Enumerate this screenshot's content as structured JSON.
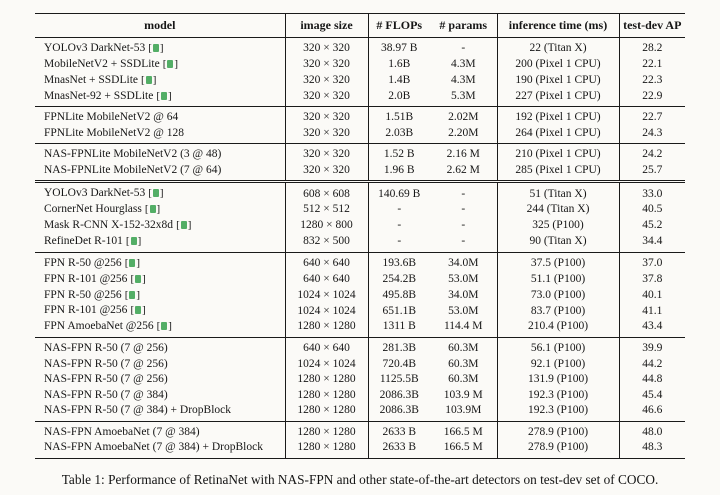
{
  "colors": {
    "citation_link": "#35a04c",
    "rule": "#1a1a1a",
    "page_background": "#fbfaf7"
  },
  "table": {
    "columns": [
      "model",
      "image size",
      "# FLOPs",
      "# params",
      "inference time (ms)",
      "test-dev AP"
    ],
    "groups": [
      {
        "separator": "single",
        "rows": [
          {
            "model": "YOLOv3 DarkNet-53",
            "cite": true,
            "size": "320 × 320",
            "flops": "38.97 B",
            "params": "-",
            "time": "22 (Titan X)",
            "ap": "28.2"
          },
          {
            "model": "MobileNetV2 + SSDLite",
            "cite": true,
            "size": "320 × 320",
            "flops": "1.6B",
            "params": "4.3M",
            "time": "200 (Pixel 1 CPU)",
            "ap": "22.1"
          },
          {
            "model": "MnasNet + SSDLite",
            "cite": true,
            "size": "320 × 320",
            "flops": "1.4B",
            "params": "4.3M",
            "time": "190 (Pixel 1 CPU)",
            "ap": "22.3"
          },
          {
            "model": "MnasNet-92 + SSDLite",
            "cite": true,
            "size": "320 × 320",
            "flops": "2.0B",
            "params": "5.3M",
            "time": "227 (Pixel 1 CPU)",
            "ap": "22.9"
          }
        ]
      },
      {
        "separator": "single",
        "rows": [
          {
            "model": "FPNLite MobileNetV2 @ 64",
            "cite": false,
            "size": "320 × 320",
            "flops": "1.51B",
            "params": "2.02M",
            "time": "192 (Pixel 1 CPU)",
            "ap": "22.7"
          },
          {
            "model": "FPNLite MobileNetV2 @ 128",
            "cite": false,
            "size": "320 × 320",
            "flops": "2.03B",
            "params": "2.20M",
            "time": "264 (Pixel 1 CPU)",
            "ap": "24.3"
          }
        ]
      },
      {
        "separator": "single",
        "rows": [
          {
            "model": "NAS-FPNLite MobileNetV2 (3 @ 48)",
            "cite": false,
            "size": "320 × 320",
            "flops": "1.52 B",
            "params": "2.16 M",
            "time": "210 (Pixel 1 CPU)",
            "ap": "24.2"
          },
          {
            "model": "NAS-FPNLite MobileNetV2 (7 @ 64)",
            "cite": false,
            "size": "320 × 320",
            "flops": "1.96 B",
            "params": "2.62 M",
            "time": "285 (Pixel 1 CPU)",
            "ap": "25.7"
          }
        ]
      },
      {
        "separator": "double",
        "rows": [
          {
            "model": "YOLOv3 DarkNet-53",
            "cite": true,
            "size": "608 × 608",
            "flops": "140.69 B",
            "params": "-",
            "time": "51 (Titan X)",
            "ap": "33.0"
          },
          {
            "model": "CornerNet Hourglass",
            "cite": true,
            "size": "512 × 512",
            "flops": "-",
            "params": "-",
            "time": "244 (Titan X)",
            "ap": "40.5"
          },
          {
            "model": "Mask R-CNN X-152-32x8d",
            "cite": true,
            "size": "1280 × 800",
            "flops": "-",
            "params": "-",
            "time": "325 (P100)",
            "ap": "45.2"
          },
          {
            "model": "RefineDet R-101",
            "cite": true,
            "size": "832 × 500",
            "flops": "-",
            "params": "-",
            "time": "90 (Titan X)",
            "ap": "34.4"
          }
        ]
      },
      {
        "separator": "single",
        "rows": [
          {
            "model": "FPN R-50 @256",
            "cite": true,
            "size": "640 × 640",
            "flops": "193.6B",
            "params": "34.0M",
            "time": "37.5 (P100)",
            "ap": "37.0"
          },
          {
            "model": "FPN R-101 @256",
            "cite": true,
            "size": "640 × 640",
            "flops": "254.2B",
            "params": "53.0M",
            "time": "51.1 (P100)",
            "ap": "37.8"
          },
          {
            "model": "FPN R-50 @256",
            "cite": true,
            "size": "1024 × 1024",
            "flops": "495.8B",
            "params": "34.0M",
            "time": "73.0 (P100)",
            "ap": "40.1"
          },
          {
            "model": "FPN R-101 @256",
            "cite": true,
            "size": "1024 × 1024",
            "flops": "651.1B",
            "params": "53.0M",
            "time": "83.7 (P100)",
            "ap": "41.1"
          },
          {
            "model": "FPN AmoebaNet @256",
            "cite": true,
            "size": "1280 × 1280",
            "flops": "1311 B",
            "params": "114.4 M",
            "time": "210.4 (P100)",
            "ap": "43.4"
          }
        ]
      },
      {
        "separator": "single",
        "rows": [
          {
            "model": "NAS-FPN R-50 (7 @ 256)",
            "cite": false,
            "size": "640 × 640",
            "flops": "281.3B",
            "params": "60.3M",
            "time": "56.1 (P100)",
            "ap": "39.9"
          },
          {
            "model": "NAS-FPN R-50 (7 @ 256)",
            "cite": false,
            "size": "1024 × 1024",
            "flops": "720.4B",
            "params": "60.3M",
            "time": "92.1 (P100)",
            "ap": "44.2"
          },
          {
            "model": "NAS-FPN R-50 (7 @ 256)",
            "cite": false,
            "size": "1280 × 1280",
            "flops": "1125.5B",
            "params": "60.3M",
            "time": "131.9 (P100)",
            "ap": "44.8"
          },
          {
            "model": "NAS-FPN R-50 (7 @ 384)",
            "cite": false,
            "size": "1280 × 1280",
            "flops": "2086.3B",
            "params": "103.9 M",
            "time": "192.3 (P100)",
            "ap": "45.4"
          },
          {
            "model": "NAS-FPN R-50 (7 @ 384) + DropBlock",
            "cite": false,
            "size": "1280 × 1280",
            "flops": "2086.3B",
            "params": "103.9M",
            "time": "192.3 (P100)",
            "ap": "46.6"
          }
        ]
      },
      {
        "separator": "single",
        "rows": [
          {
            "model": "NAS-FPN AmoebaNet (7 @ 384)",
            "cite": false,
            "size": "1280 × 1280",
            "flops": "2633 B",
            "params": "166.5 M",
            "time": "278.9 (P100)",
            "ap": "48.0"
          },
          {
            "model": "NAS-FPN AmoebaNet (7 @ 384) + DropBlock",
            "cite": false,
            "size": "1280 × 1280",
            "flops": "2633 B",
            "params": "166.5 M",
            "time": "278.9 (P100)",
            "ap": "48.3"
          }
        ]
      }
    ]
  },
  "caption": "Table 1: Performance of RetinaNet with NAS-FPN and other state-of-the-art detectors on test-dev set of COCO."
}
